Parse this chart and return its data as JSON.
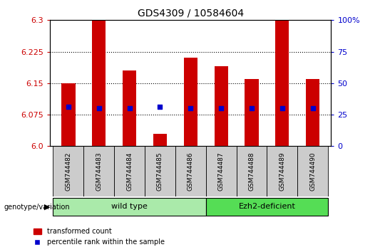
{
  "title": "GDS4309 / 10584604",
  "samples": [
    "GSM744482",
    "GSM744483",
    "GSM744484",
    "GSM744485",
    "GSM744486",
    "GSM744487",
    "GSM744488",
    "GSM744489",
    "GSM744490"
  ],
  "transformed_count": [
    6.15,
    6.3,
    6.18,
    6.03,
    6.21,
    6.19,
    6.16,
    6.3,
    6.16
  ],
  "percentile_rank": [
    6.093,
    6.09,
    6.09,
    6.093,
    6.09,
    6.09,
    6.09,
    6.09,
    6.09
  ],
  "ymin": 6.0,
  "ymax": 6.3,
  "y2min": 0,
  "y2max": 100,
  "yticks": [
    6.0,
    6.075,
    6.15,
    6.225,
    6.3
  ],
  "y2ticks": [
    0,
    25,
    50,
    75,
    100
  ],
  "bar_color": "#cc0000",
  "dot_color": "#0000cc",
  "wild_type_samples": [
    0,
    1,
    2,
    3,
    4
  ],
  "ezh2_samples": [
    5,
    6,
    7,
    8
  ],
  "wild_type_label": "wild type",
  "ezh2_label": "Ezh2-deficient",
  "genotype_label": "genotype/variation",
  "legend_red": "transformed count",
  "legend_blue": "percentile rank within the sample",
  "wild_type_color": "#aaeaaa",
  "ezh2_color": "#55dd55",
  "tick_label_color_left": "#cc0000",
  "tick_label_color_right": "#0000cc",
  "bar_width": 0.45,
  "background_color": "#ffffff",
  "label_box_color": "#cccccc"
}
